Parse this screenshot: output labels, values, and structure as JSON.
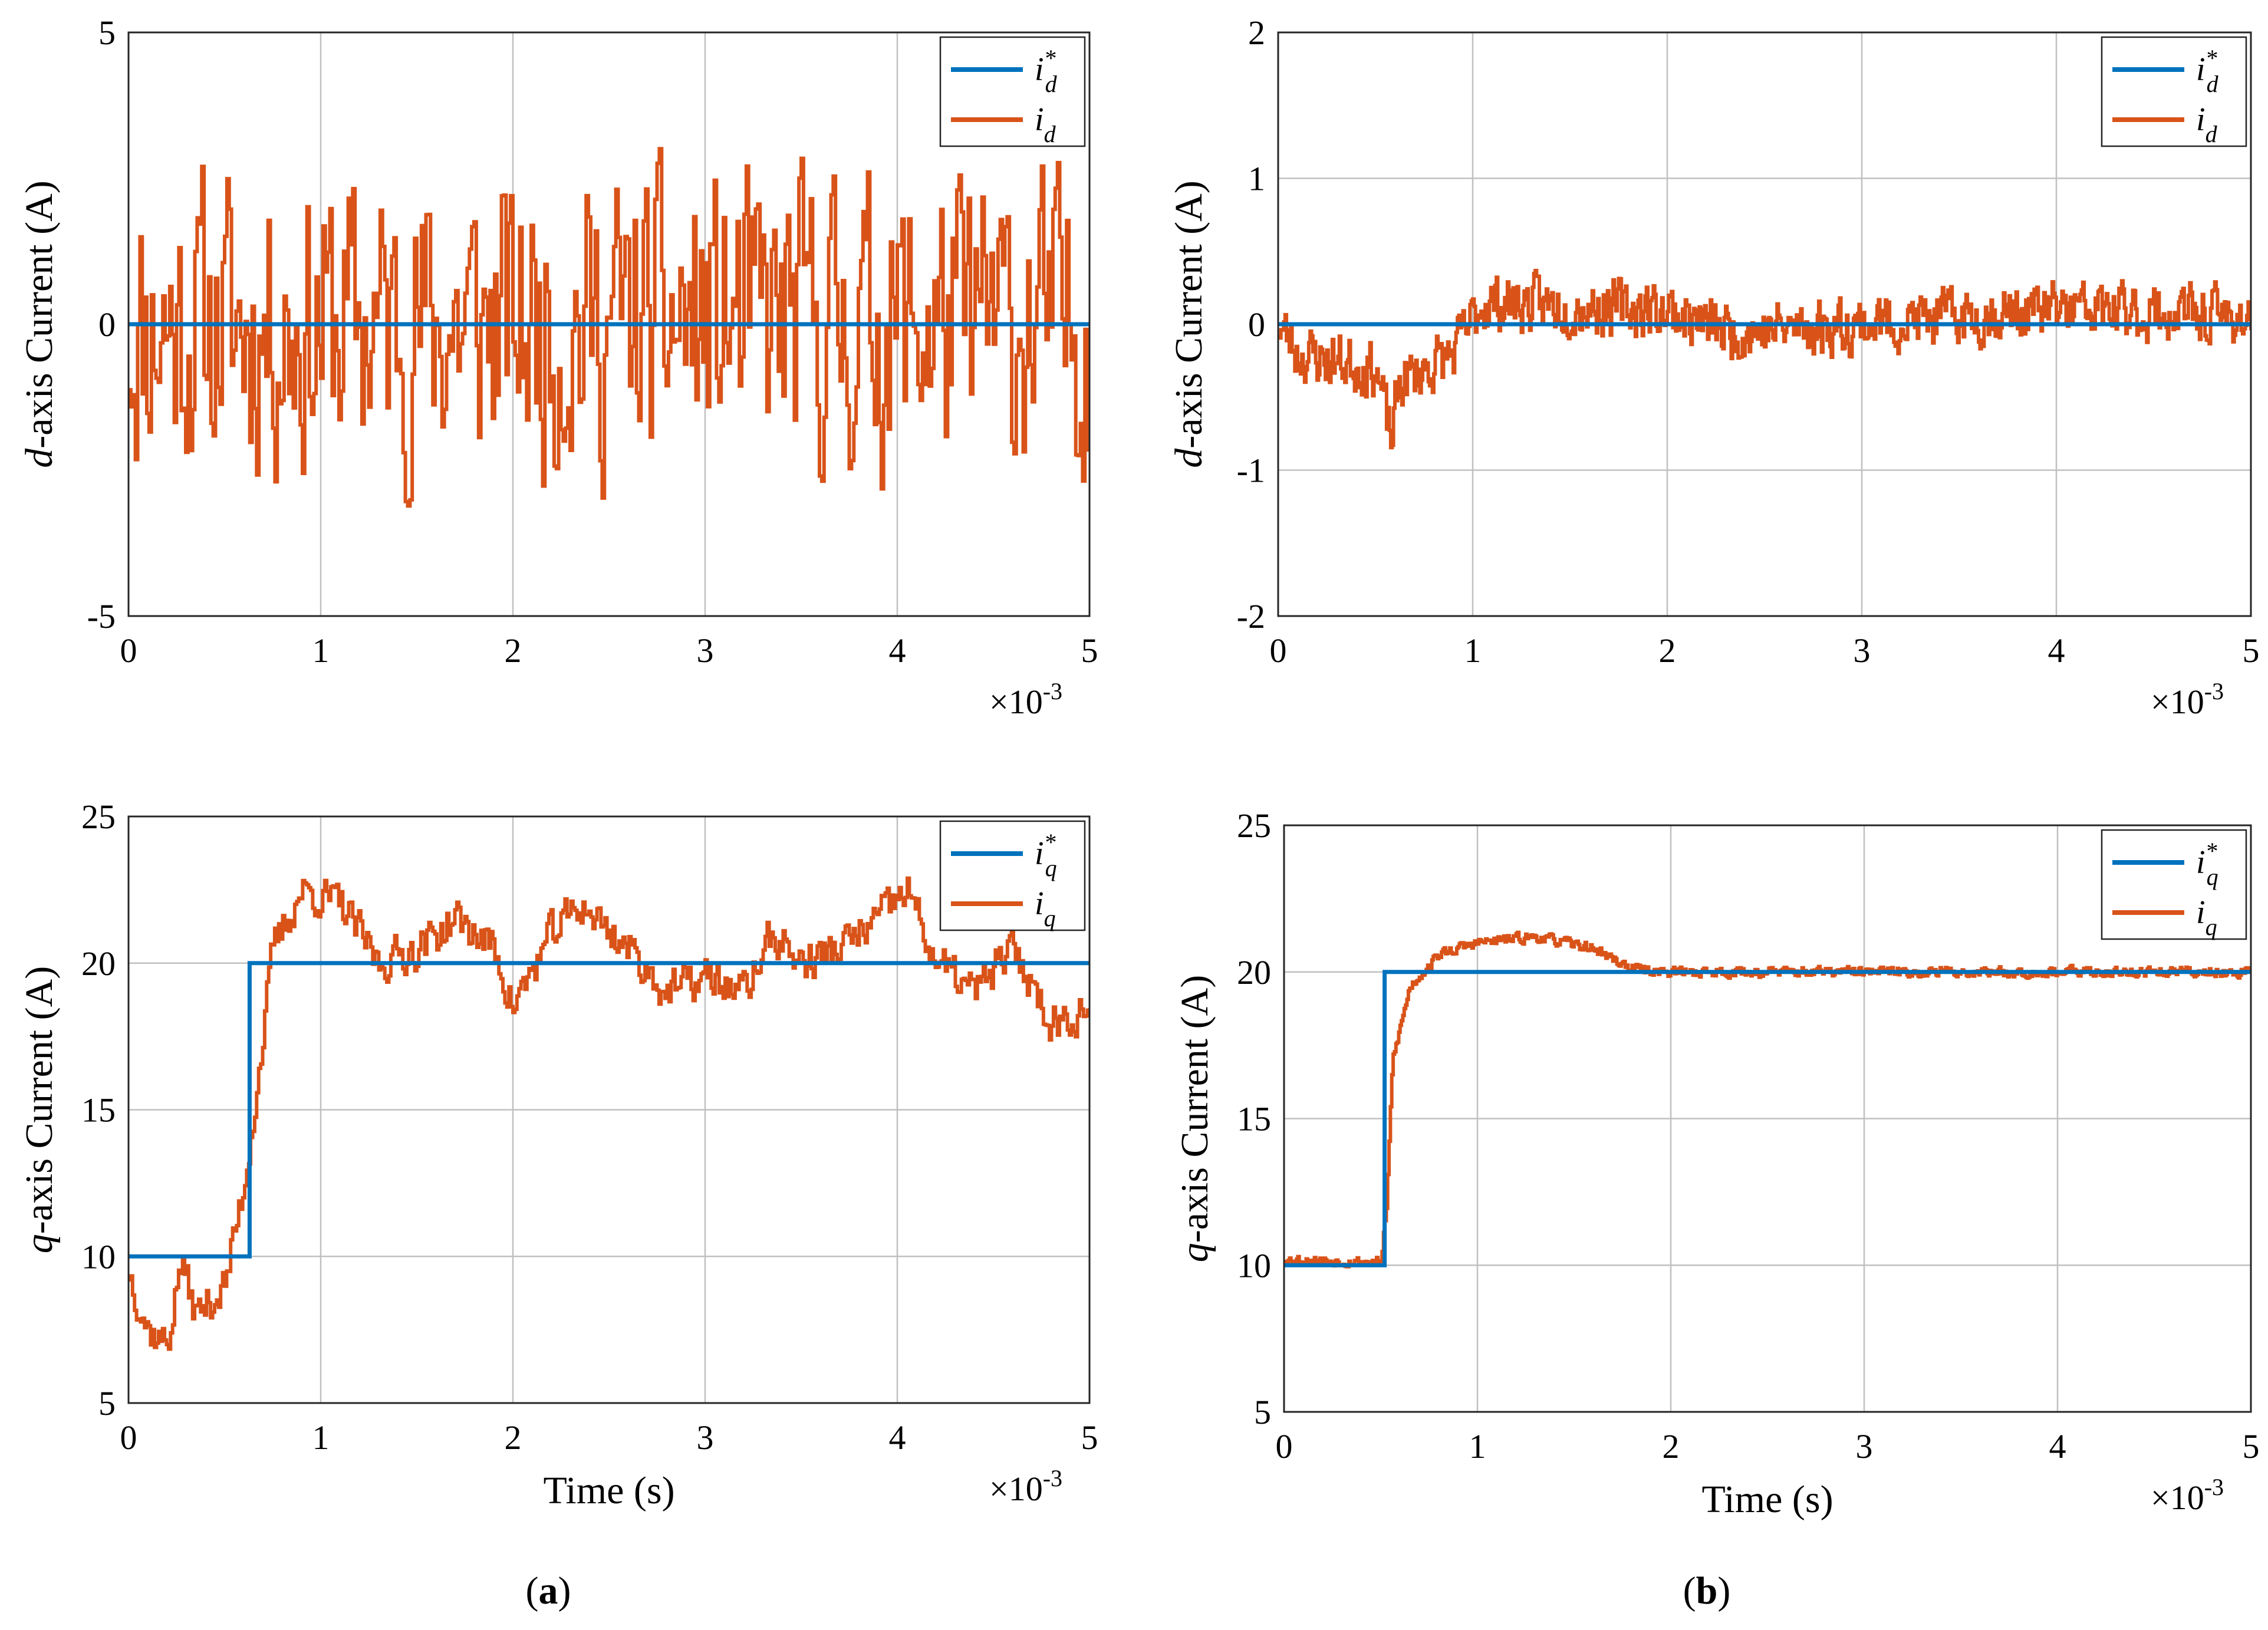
{
  "chart_data": [
    {
      "id": "a-top",
      "type": "line",
      "ylabel_var": "d",
      "ylabel_rest": "-axis Current (A)",
      "xlabel": "",
      "xlim": [
        0,
        5
      ],
      "ylim": [
        -5,
        5
      ],
      "xticks": [
        "0",
        "1",
        "2",
        "3",
        "4",
        "5"
      ],
      "yticks": [
        "5",
        "0",
        "-5"
      ],
      "ytick_values": [
        5,
        0,
        -5
      ],
      "x_exponent_base": "×10",
      "x_exponent": "-3",
      "grid": true,
      "legend_position": "top-right",
      "series": [
        {
          "name": "i*_d",
          "legend_main": "i",
          "legend_sup": "*",
          "legend_sub": "d",
          "color": "#0072BD",
          "kind": "step",
          "points": [
            [
              0,
              0
            ],
            [
              5,
              0
            ]
          ]
        },
        {
          "name": "i_d",
          "legend_main": "i",
          "legend_sup": "",
          "legend_sub": "d",
          "color": "#D95319",
          "kind": "noise",
          "mean_shape": [
            [
              0,
              0
            ],
            [
              5,
              0
            ]
          ],
          "amplitude": 3.6,
          "seed": 11,
          "n": 420
        }
      ]
    },
    {
      "id": "b-top",
      "type": "line",
      "ylabel_var": "d",
      "ylabel_rest": "-axis Current (A)",
      "xlabel": "",
      "xlim": [
        0,
        5
      ],
      "ylim": [
        -2,
        2
      ],
      "xticks": [
        "0",
        "1",
        "2",
        "3",
        "4",
        "5"
      ],
      "yticks": [
        "2",
        "1",
        "0",
        "-1",
        "-2"
      ],
      "ytick_values": [
        2,
        1,
        0,
        -1,
        -2
      ],
      "x_exponent_base": "×10",
      "x_exponent": "-3",
      "grid": true,
      "legend_position": "top-right",
      "series": [
        {
          "name": "i*_d",
          "legend_main": "i",
          "legend_sup": "*",
          "legend_sub": "d",
          "color": "#0072BD",
          "kind": "step",
          "points": [
            [
              0,
              0
            ],
            [
              5,
              0
            ]
          ]
        },
        {
          "name": "i_d",
          "legend_main": "i",
          "legend_sup": "",
          "legend_sub": "d",
          "color": "#D95319",
          "kind": "noise",
          "mean_shape": [
            [
              0,
              0
            ],
            [
              0.1,
              -0.2
            ],
            [
              0.3,
              -0.25
            ],
            [
              0.5,
              -0.3
            ],
            [
              0.58,
              -0.8
            ],
            [
              0.62,
              -0.4
            ],
            [
              0.9,
              -0.2
            ],
            [
              1.05,
              0.15
            ],
            [
              2,
              0.1
            ],
            [
              2.3,
              -0.05
            ],
            [
              3,
              0.0
            ],
            [
              4,
              0.1
            ],
            [
              5,
              0.05
            ]
          ],
          "amplitude": 0.28,
          "seed": 23,
          "n": 700
        }
      ]
    },
    {
      "id": "a-bottom",
      "type": "line",
      "ylabel_var": "q",
      "ylabel_rest": "-axis Current (A)",
      "xlabel": "Time (s)",
      "xlim": [
        0,
        5
      ],
      "ylim": [
        5,
        25
      ],
      "xticks": [
        "0",
        "1",
        "2",
        "3",
        "4",
        "5"
      ],
      "yticks": [
        "25",
        "20",
        "15",
        "10",
        "5"
      ],
      "ytick_values": [
        25,
        20,
        15,
        10,
        5
      ],
      "x_exponent_base": "×10",
      "x_exponent": "-3",
      "grid": true,
      "legend_position": "top-right",
      "series": [
        {
          "name": "i*_q",
          "legend_main": "i",
          "legend_sup": "*",
          "legend_sub": "q",
          "color": "#0072BD",
          "kind": "step",
          "points": [
            [
              0,
              10
            ],
            [
              0.63,
              10
            ],
            [
              0.63,
              20
            ],
            [
              5,
              20
            ]
          ]
        },
        {
          "name": "i_q",
          "legend_main": "i",
          "legend_sup": "",
          "legend_sub": "q",
          "color": "#D95319",
          "kind": "noise",
          "mean_shape": [
            [
              0,
              9.5
            ],
            [
              0.1,
              7.5
            ],
            [
              0.2,
              7.0
            ],
            [
              0.27,
              9.8
            ],
            [
              0.35,
              8.0
            ],
            [
              0.5,
              9.0
            ],
            [
              0.6,
              12.5
            ],
            [
              0.68,
              16.5
            ],
            [
              0.75,
              20.5
            ],
            [
              0.9,
              22.5
            ],
            [
              1.1,
              22.0
            ],
            [
              1.3,
              20.0
            ],
            [
              1.5,
              20.5
            ],
            [
              1.7,
              21.5
            ],
            [
              1.9,
              20.5
            ],
            [
              2.0,
              18.5
            ],
            [
              2.2,
              21.0
            ],
            [
              2.35,
              22.0
            ],
            [
              2.6,
              20.5
            ],
            [
              2.8,
              19.0
            ],
            [
              3.0,
              19.5
            ],
            [
              3.2,
              19.0
            ],
            [
              3.35,
              21.0
            ],
            [
              3.5,
              20.0
            ],
            [
              3.7,
              20.5
            ],
            [
              3.9,
              21.5
            ],
            [
              4.05,
              22.5
            ],
            [
              4.2,
              20.0
            ],
            [
              4.4,
              19.0
            ],
            [
              4.6,
              20.5
            ],
            [
              4.8,
              18.0
            ],
            [
              5.0,
              18.5
            ]
          ],
          "amplitude": 1.0,
          "seed": 37,
          "n": 480
        }
      ]
    },
    {
      "id": "b-bottom",
      "type": "line",
      "ylabel_var": "q",
      "ylabel_rest": "-axis Current (A)",
      "xlabel": "Time (s)",
      "xlim": [
        0,
        5
      ],
      "ylim": [
        5,
        25
      ],
      "xticks": [
        "0",
        "1",
        "2",
        "3",
        "4",
        "5"
      ],
      "yticks": [
        "25",
        "20",
        "15",
        "10",
        "5"
      ],
      "ytick_values": [
        25,
        20,
        15,
        10,
        5
      ],
      "x_exponent_base": "×10",
      "x_exponent": "-3",
      "grid": true,
      "legend_position": "top-right",
      "series": [
        {
          "name": "i*_q",
          "legend_main": "i",
          "legend_sup": "*",
          "legend_sub": "q",
          "color": "#0072BD",
          "kind": "step",
          "points": [
            [
              0,
              10
            ],
            [
              0.52,
              10
            ],
            [
              0.52,
              20
            ],
            [
              5,
              20
            ]
          ]
        },
        {
          "name": "i_q",
          "legend_main": "i",
          "legend_sup": "",
          "legend_sub": "q",
          "color": "#D95319",
          "kind": "noise",
          "mean_shape": [
            [
              0,
              10.2
            ],
            [
              0.5,
              10.1
            ],
            [
              0.53,
              12.0
            ],
            [
              0.56,
              17.0
            ],
            [
              0.65,
              19.5
            ],
            [
              0.8,
              20.6
            ],
            [
              1.0,
              21.0
            ],
            [
              1.3,
              21.2
            ],
            [
              1.6,
              20.8
            ],
            [
              1.8,
              20.1
            ],
            [
              2.0,
              20.0
            ],
            [
              3.0,
              20.0
            ],
            [
              4.0,
              20.0
            ],
            [
              5.0,
              20.0
            ]
          ],
          "amplitude": 0.25,
          "seed": 53,
          "n": 700
        }
      ]
    }
  ],
  "captions": {
    "a_open": "(",
    "a_letter": "a",
    "a_close": ")",
    "b_open": "(",
    "b_letter": "b",
    "b_close": ")"
  }
}
